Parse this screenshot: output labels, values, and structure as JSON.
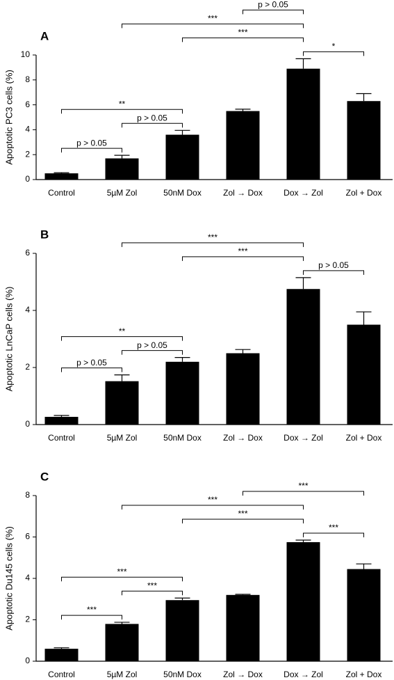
{
  "chart_data": [
    {
      "type": "bar",
      "panel": "A",
      "y_label": "Apoptotic PC3 cells (%)",
      "color": "#000000",
      "categories": [
        "Control",
        "5µM Zol",
        "50nM Dox",
        "Zol → Dox",
        "Dox → Zol",
        "Zol + Dox"
      ],
      "values": [
        0.5,
        1.7,
        3.6,
        5.5,
        8.9,
        6.3
      ],
      "errors": [
        0.05,
        0.25,
        0.35,
        0.15,
        0.8,
        0.6
      ],
      "ylim": [
        0,
        10
      ],
      "yticks": [
        0,
        2,
        4,
        6,
        8,
        10
      ],
      "brackets": [
        {
          "from": "Control",
          "to": "5µM Zol",
          "label": "p > 0.05"
        },
        {
          "from": "5µM Zol",
          "to": "50nM Dox",
          "label": "p > 0.05"
        },
        {
          "from": "Control",
          "to": "50nM Dox",
          "label": "**"
        },
        {
          "from": "Dox → Zol",
          "to": "Zol + Dox",
          "label": "*"
        },
        {
          "from": "50nM Dox",
          "to": "Dox → Zol",
          "label": "***"
        },
        {
          "from": "5µM Zol",
          "to": "Dox → Zol",
          "label": "***"
        },
        {
          "from": "Zol → Dox",
          "to": "Dox → Zol",
          "label": "p > 0.05"
        }
      ]
    },
    {
      "type": "bar",
      "panel": "B",
      "y_label": "Apoptotic LnCaP cells (%)",
      "color": "#000000",
      "categories": [
        "Control",
        "5µM Zol",
        "50nM Dox",
        "Zol → Dox",
        "Dox → Zol",
        "Zol + Dox"
      ],
      "values": [
        0.27,
        1.52,
        2.2,
        2.5,
        4.75,
        3.5
      ],
      "errors": [
        0.05,
        0.22,
        0.15,
        0.13,
        0.4,
        0.45
      ],
      "ylim": [
        0,
        6
      ],
      "yticks": [
        0,
        2,
        4,
        6
      ],
      "brackets": [
        {
          "from": "Control",
          "to": "5µM Zol",
          "label": "p > 0.05"
        },
        {
          "from": "5µM Zol",
          "to": "50nM Dox",
          "label": "p > 0.05"
        },
        {
          "from": "Control",
          "to": "50nM Dox",
          "label": "**"
        },
        {
          "from": "Dox → Zol",
          "to": "Zol + Dox",
          "label": "p > 0.05"
        },
        {
          "from": "50nM Dox",
          "to": "Dox → Zol",
          "label": "***"
        },
        {
          "from": "5µM Zol",
          "to": "Dox → Zol",
          "label": "***"
        }
      ]
    },
    {
      "type": "bar",
      "panel": "C",
      "y_label": "Apoptotic Du145 cells (%)",
      "color": "#000000",
      "categories": [
        "Control",
        "5µM Zol",
        "50nM Dox",
        "Zol → Dox",
        "Dox → Zol",
        "Zol + Dox"
      ],
      "values": [
        0.6,
        1.8,
        2.95,
        3.2,
        5.75,
        4.45
      ],
      "errors": [
        0.05,
        0.08,
        0.1,
        0.03,
        0.1,
        0.25
      ],
      "ylim": [
        0,
        8
      ],
      "yticks": [
        0,
        2,
        4,
        6,
        8
      ],
      "brackets": [
        {
          "from": "Control",
          "to": "5µM Zol",
          "label": "***"
        },
        {
          "from": "5µM Zol",
          "to": "50nM Dox",
          "label": "***"
        },
        {
          "from": "Control",
          "to": "50nM Dox",
          "label": "***"
        },
        {
          "from": "Dox → Zol",
          "to": "Zol + Dox",
          "label": "***"
        },
        {
          "from": "50nM Dox",
          "to": "Dox → Zol",
          "label": "***"
        },
        {
          "from": "5µM Zol",
          "to": "Dox → Zol",
          "label": "***"
        },
        {
          "from": "Zol → Dox",
          "to": "Zol + Dox",
          "label": "***"
        }
      ]
    }
  ]
}
